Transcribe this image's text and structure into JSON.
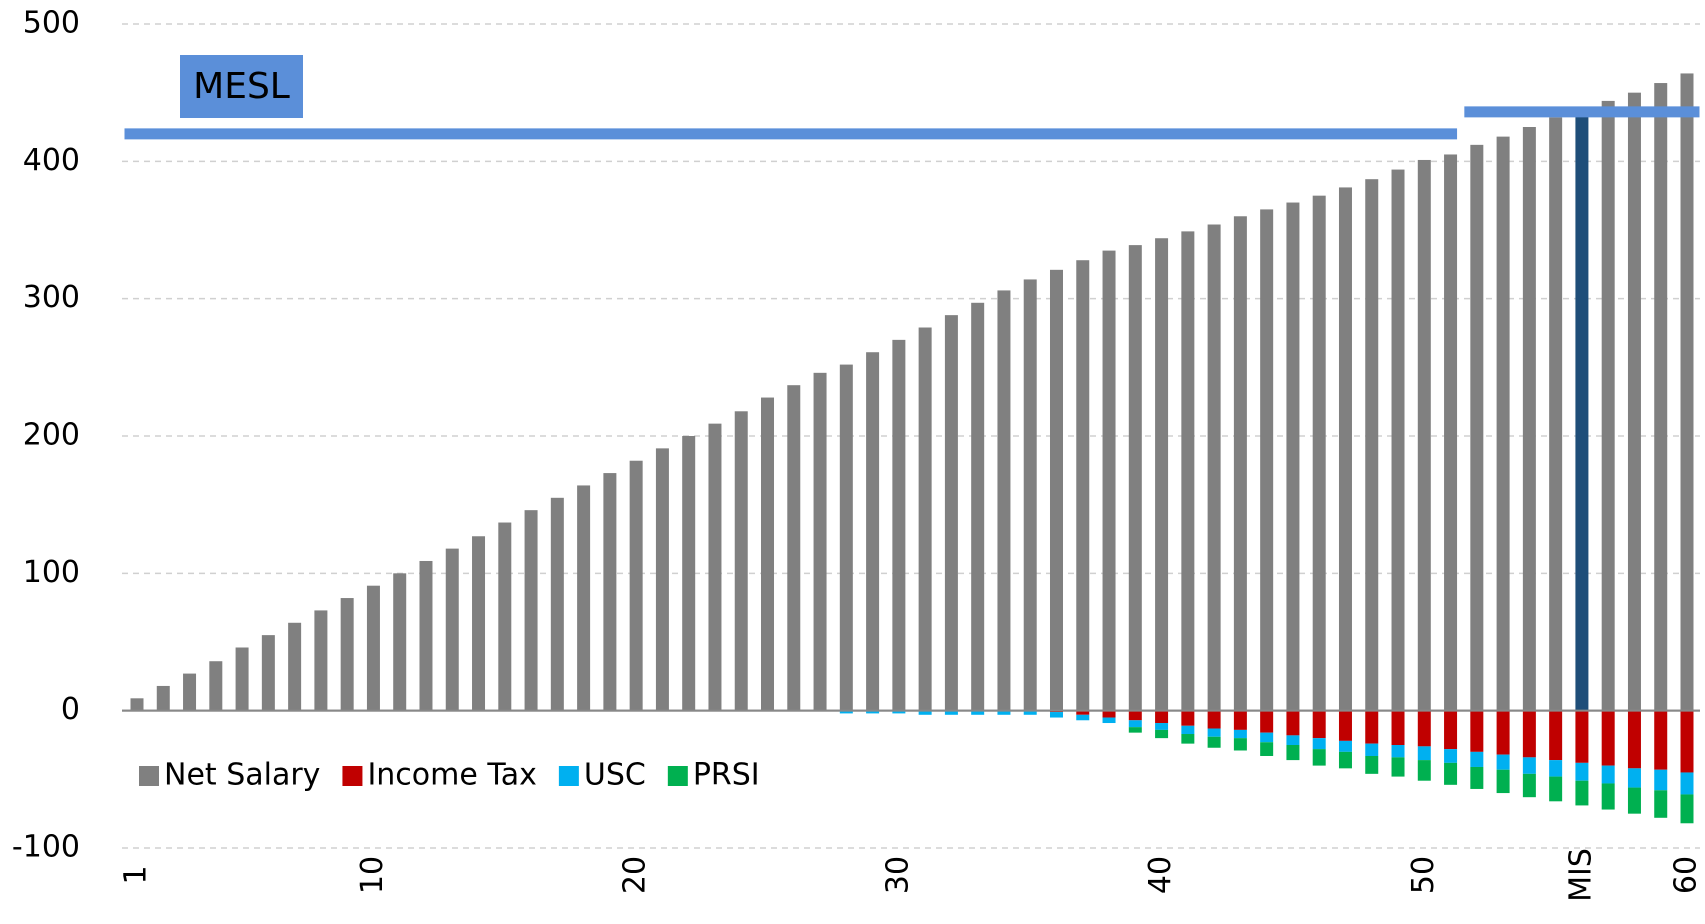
{
  "chart_data": {
    "type": "stacked_bar",
    "categories": [
      "1",
      null,
      null,
      null,
      null,
      null,
      null,
      null,
      null,
      "10",
      null,
      null,
      null,
      null,
      null,
      null,
      null,
      null,
      null,
      "20",
      null,
      null,
      null,
      null,
      null,
      null,
      null,
      null,
      null,
      "30",
      null,
      null,
      null,
      null,
      null,
      null,
      null,
      null,
      null,
      "40",
      null,
      null,
      null,
      null,
      null,
      null,
      null,
      null,
      null,
      "50",
      null,
      null,
      null,
      null,
      null,
      "MIS",
      null,
      null,
      null,
      "60"
    ],
    "series": [
      {
        "name": "Net Salary",
        "color": "#808080",
        "values": [
          9,
          18,
          27,
          36,
          46,
          55,
          64,
          73,
          82,
          91,
          100,
          109,
          118,
          127,
          137,
          146,
          155,
          164,
          173,
          182,
          191,
          200,
          209,
          218,
          228,
          237,
          246,
          252,
          261,
          270,
          279,
          288,
          297,
          306,
          314,
          321,
          328,
          335,
          339,
          344,
          349,
          354,
          360,
          365,
          370,
          375,
          381,
          387,
          394,
          401,
          405,
          412,
          418,
          425,
          432,
          436,
          444,
          450,
          457,
          464
        ]
      },
      {
        "name": "Income Tax",
        "color": "#c00000",
        "values": [
          0,
          0,
          0,
          0,
          0,
          0,
          0,
          0,
          0,
          0,
          0,
          0,
          0,
          0,
          0,
          0,
          0,
          0,
          0,
          0,
          0,
          0,
          0,
          0,
          0,
          0,
          0,
          0,
          0,
          0,
          0,
          0,
          0,
          0,
          0,
          -1,
          -3,
          -5,
          -7,
          -9,
          -11,
          -13,
          -14,
          -16,
          -18,
          -20,
          -22,
          -24,
          -25,
          -26,
          -28,
          -30,
          -32,
          -34,
          -36,
          -38,
          -40,
          -42,
          -43,
          -45
        ]
      },
      {
        "name": "USC",
        "color": "#00b0f0",
        "values": [
          0,
          0,
          0,
          0,
          0,
          0,
          0,
          0,
          0,
          0,
          0,
          0,
          0,
          0,
          0,
          0,
          0,
          0,
          0,
          0,
          0,
          0,
          0,
          0,
          0,
          0,
          0,
          -2,
          -2,
          -2,
          -3,
          -3,
          -3,
          -3,
          -3,
          -4,
          -4,
          -4,
          -5,
          -5,
          -6,
          -6,
          -6,
          -7,
          -7,
          -8,
          -8,
          -9,
          -9,
          -10,
          -10,
          -11,
          -11,
          -12,
          -12,
          -13,
          -13,
          -14,
          -15,
          -16
        ]
      },
      {
        "name": "PRSI",
        "color": "#00b050",
        "values": [
          0,
          0,
          0,
          0,
          0,
          0,
          0,
          0,
          0,
          0,
          0,
          0,
          0,
          0,
          0,
          0,
          0,
          0,
          0,
          0,
          0,
          0,
          0,
          0,
          0,
          0,
          0,
          0,
          0,
          0,
          0,
          0,
          0,
          0,
          0,
          0,
          0,
          0,
          -4,
          -6,
          -7,
          -8,
          -9,
          -10,
          -11,
          -12,
          -12,
          -13,
          -14,
          -15,
          -16,
          -16,
          -17,
          -17,
          -18,
          -18,
          -19,
          -19,
          -20,
          -21
        ]
      }
    ],
    "highlight": {
      "category": "MIS",
      "color": "#1f4e79"
    },
    "ylim": [
      -100,
      500
    ],
    "yticks": [
      -100,
      0,
      100,
      200,
      300,
      400,
      500
    ],
    "negative_tick_color": "#ff0000",
    "grid": true,
    "legend": "bottom-left",
    "reference": {
      "label": "MESL",
      "color": "#5b8fd9",
      "segments": [
        {
          "value": 420,
          "start": 1,
          "end": 51
        },
        {
          "value": 436,
          "start": 52,
          "end": 60
        }
      ]
    }
  }
}
